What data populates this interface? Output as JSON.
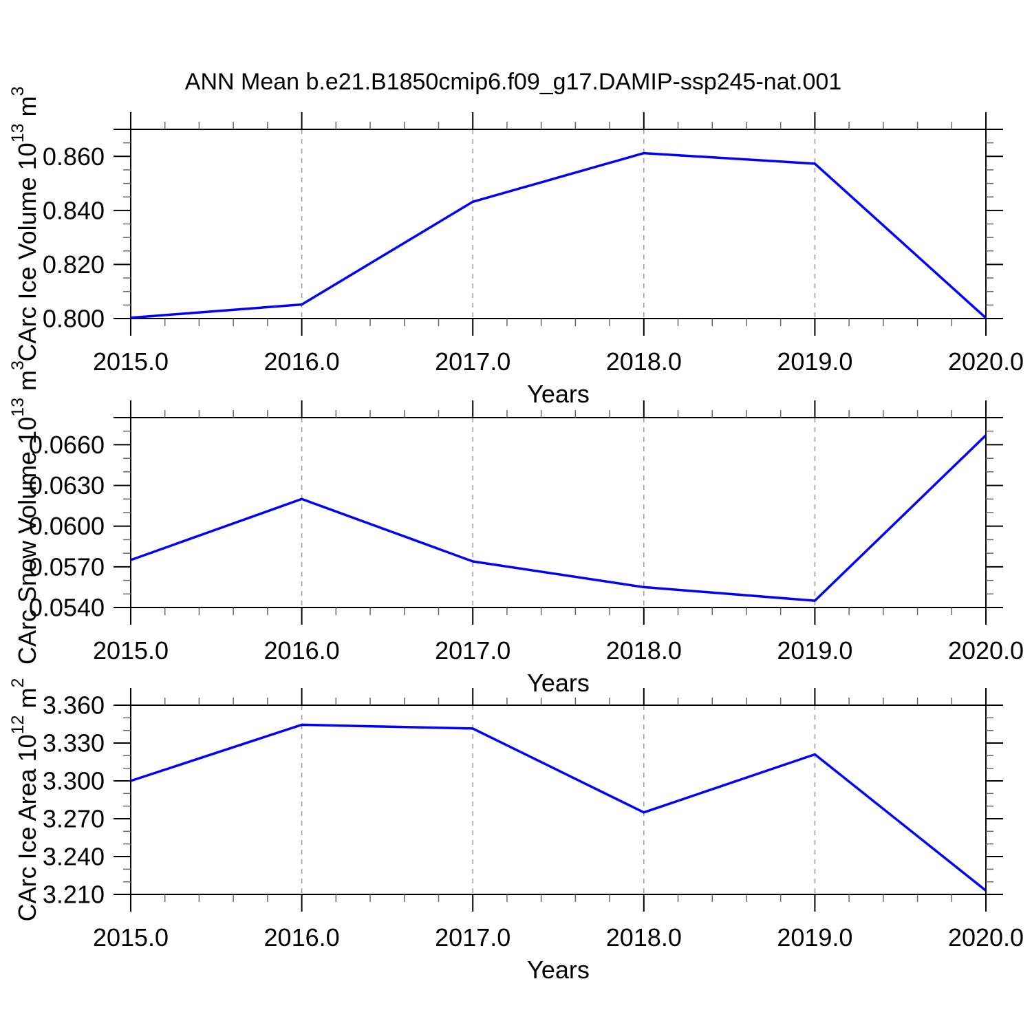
{
  "figure": {
    "title": "ANN Mean b.e21.B1850cmip6.f09_g17.DAMIP-ssp245-nat.001",
    "line_color": "#0000ff",
    "frame_color": "#000000",
    "grid_color": "#999999",
    "background": "#ffffff"
  },
  "chart_data": [
    {
      "type": "line",
      "panel": "carc-ice-volume",
      "x": [
        2015.0,
        2016.0,
        2017.0,
        2018.0,
        2019.0,
        2020.0
      ],
      "values": [
        0.8003,
        0.8052,
        0.8432,
        0.8612,
        0.8573,
        0.8002
      ],
      "xlabel": "Years",
      "ylabel": "CArc Ice Volume 10^13 m^3",
      "ylabel_rich": [
        [
          "t",
          "CArc Ice Volume 10"
        ],
        [
          "s",
          "13"
        ],
        [
          "t",
          " m"
        ],
        [
          "s",
          "3"
        ]
      ],
      "xlim": [
        2015.0,
        2020.0
      ],
      "ylim": [
        0.8,
        0.87
      ],
      "xticks": {
        "values": [
          2015.0,
          2016.0,
          2017.0,
          2018.0,
          2019.0,
          2020.0
        ],
        "labels": [
          "2015.0",
          "2016.0",
          "2017.0",
          "2018.0",
          "2019.0",
          "2020.0"
        ],
        "minor_step": 0.2
      },
      "yticks": {
        "values": [
          0.8,
          0.82,
          0.84,
          0.86
        ],
        "labels": [
          "0.800",
          "0.820",
          "0.840",
          "0.860"
        ],
        "minor_step": 0.005
      },
      "grid_x": [
        2016.0,
        2017.0,
        2018.0,
        2019.0
      ],
      "grid_style": "dashed-vertical",
      "legend": "none"
    },
    {
      "type": "line",
      "panel": "carc-snow-volume",
      "x": [
        2015.0,
        2016.0,
        2017.0,
        2018.0,
        2019.0,
        2020.0
      ],
      "values": [
        0.0575,
        0.062,
        0.0574,
        0.0555,
        0.0545,
        0.0667
      ],
      "xlabel": "Years",
      "ylabel": "CArc Snow Volume 10^13 m^3",
      "ylabel_rich": [
        [
          "t",
          "CArc Snow Volume 10"
        ],
        [
          "s",
          "13"
        ],
        [
          "t",
          " m"
        ],
        [
          "s",
          "3"
        ]
      ],
      "xlim": [
        2015.0,
        2020.0
      ],
      "ylim": [
        0.054,
        0.068
      ],
      "xticks": {
        "values": [
          2015.0,
          2016.0,
          2017.0,
          2018.0,
          2019.0,
          2020.0
        ],
        "labels": [
          "2015.0",
          "2016.0",
          "2017.0",
          "2018.0",
          "2019.0",
          "2020.0"
        ],
        "minor_step": 0.2
      },
      "yticks": {
        "values": [
          0.054,
          0.057,
          0.06,
          0.063,
          0.066
        ],
        "labels": [
          "0.0540",
          "0.0570",
          "0.0600",
          "0.0630",
          "0.0660"
        ],
        "minor_step": 0.001
      },
      "grid_x": [
        2016.0,
        2017.0,
        2018.0,
        2019.0
      ],
      "grid_style": "dashed-vertical",
      "legend": "none"
    },
    {
      "type": "line",
      "panel": "carc-ice-area",
      "x": [
        2015.0,
        2016.0,
        2017.0,
        2018.0,
        2019.0,
        2020.0
      ],
      "values": [
        3.3,
        3.3445,
        3.3415,
        3.275,
        3.321,
        3.213
      ],
      "xlabel": "Years",
      "ylabel": "CArc Ice Area 10^12 m^2",
      "ylabel_rich": [
        [
          "t",
          "CArc Ice Area 10"
        ],
        [
          "s",
          "12"
        ],
        [
          "t",
          " m"
        ],
        [
          "s",
          "2"
        ]
      ],
      "xlim": [
        2015.0,
        2020.0
      ],
      "ylim": [
        3.21,
        3.36
      ],
      "xticks": {
        "values": [
          2015.0,
          2016.0,
          2017.0,
          2018.0,
          2019.0,
          2020.0
        ],
        "labels": [
          "2015.0",
          "2016.0",
          "2017.0",
          "2018.0",
          "2019.0",
          "2020.0"
        ],
        "minor_step": 0.2
      },
      "yticks": {
        "values": [
          3.21,
          3.24,
          3.27,
          3.3,
          3.33,
          3.36
        ],
        "labels": [
          "3.210",
          "3.240",
          "3.270",
          "3.300",
          "3.330",
          "3.360"
        ],
        "minor_step": 0.01
      },
      "grid_x": [
        2016.0,
        2017.0,
        2018.0,
        2019.0
      ],
      "grid_style": "dashed-vertical",
      "legend": "none"
    }
  ]
}
